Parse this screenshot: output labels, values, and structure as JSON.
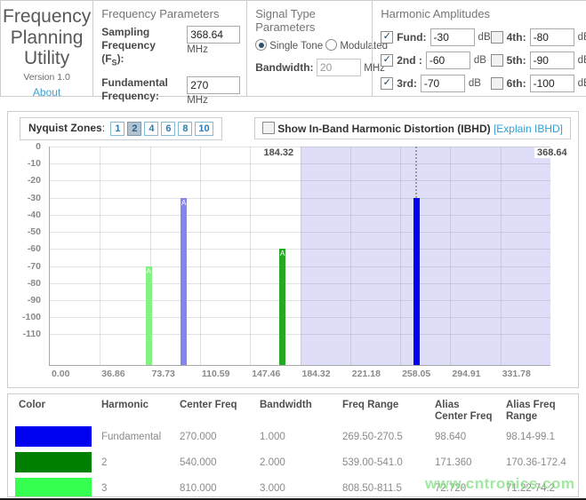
{
  "header": {
    "app_title": "Frequency Planning Utility",
    "version": "Version 1.0",
    "about_link": "About",
    "frequency_parameters": {
      "title": "Frequency Parameters",
      "sampling_label": "Sampling Frequency",
      "sampling_fs_prefix": "(F",
      "sampling_fs_sub": "S",
      "sampling_fs_suffix": "):",
      "sampling_value": "368.64",
      "sampling_unit": "MHz",
      "fundamental_label": "Fundamental Frequency:",
      "fundamental_value": "270",
      "fundamental_unit": "MHz"
    },
    "signal_type": {
      "title": "Signal Type Parameters",
      "options": [
        {
          "label": "Single Tone",
          "selected": true
        },
        {
          "label": "Modulated",
          "selected": false
        }
      ],
      "bandwidth_label": "Bandwidth:",
      "bandwidth_value": "20",
      "bandwidth_disabled": true,
      "bandwidth_unit": "MHz"
    },
    "harmonic_amplitudes": {
      "title": "Harmonic Amplitudes",
      "unit": "dB",
      "items": [
        {
          "label": "Fund:",
          "value": "-30",
          "checked": true
        },
        {
          "label": "2nd :",
          "value": "-60",
          "checked": true
        },
        {
          "label": "3rd:",
          "value": "-70",
          "checked": true
        },
        {
          "label": "4th:",
          "value": "-80",
          "checked": false
        },
        {
          "label": "5th:",
          "value": "-90",
          "checked": false
        },
        {
          "label": "6th:",
          "value": "-100",
          "checked": false
        }
      ]
    }
  },
  "controls": {
    "nyquist_label": "Nyquist Zones",
    "nyquist_separator": ":",
    "zones": [
      {
        "label": "1",
        "selected": false
      },
      {
        "label": "2",
        "selected": true
      },
      {
        "label": "4",
        "selected": false
      },
      {
        "label": "6",
        "selected": false
      },
      {
        "label": "8",
        "selected": false
      },
      {
        "label": "10",
        "selected": false
      }
    ],
    "ibhd_label": "Show In-Band Harmonic Distortion (IBHD)",
    "ibhd_link": "[Explain IBHD]",
    "ibhd_checked": false
  },
  "chart_data": {
    "type": "bar",
    "xlim": [
      0,
      368.64
    ],
    "x_ticks": [
      {
        "value": 0,
        "label": "0.00"
      },
      {
        "value": 36.864,
        "label": "36.86"
      },
      {
        "value": 73.728,
        "label": "73.73"
      },
      {
        "value": 110.592,
        "label": "110.59"
      },
      {
        "value": 147.456,
        "label": "147.46"
      },
      {
        "value": 184.32,
        "label": "184.32"
      },
      {
        "value": 221.184,
        "label": "221.18"
      },
      {
        "value": 258.048,
        "label": "258.05"
      },
      {
        "value": 294.912,
        "label": "294.91"
      },
      {
        "value": 331.776,
        "label": "331.78"
      }
    ],
    "y_ticks": [
      0,
      -10,
      -20,
      -30,
      -40,
      -50,
      -60,
      -70,
      -80,
      -90,
      -100,
      -110
    ],
    "ylabel_unit": "dB",
    "y_bottom": -128,
    "grid": true,
    "shaded_zone": {
      "start": 184.32,
      "end": 368.64,
      "start_label": "184.32",
      "end_label": "368.64",
      "color": "#dedef8"
    },
    "alias_marker": "A",
    "bars": [
      {
        "name": "harmonic-3-alias",
        "freq": 72.72,
        "amp_db": -70,
        "color": "#83f283",
        "alias": true
      },
      {
        "name": "fundamental-alias",
        "freq": 98.64,
        "amp_db": -30,
        "color": "#8585ef",
        "alias": true
      },
      {
        "name": "harmonic-2-alias",
        "freq": 171.36,
        "amp_db": -60,
        "color": "#25a825",
        "alias": true
      },
      {
        "name": "fundamental",
        "freq": 270.0,
        "amp_db": -30,
        "color": "#0000ee",
        "alias": false,
        "dotted_marker": true
      }
    ]
  },
  "table": {
    "headers": [
      "Color",
      "Harmonic",
      "Center Freq",
      "Bandwidth",
      "Freq Range",
      "Alias Center Freq",
      "Alias Freq Range"
    ],
    "rows": [
      {
        "color": "#0000f0",
        "harmonic": "Fundamental",
        "center_freq": "270.000",
        "bandwidth": "1.000",
        "freq_range": "269.50-270.5",
        "alias_center": "98.640",
        "alias_range": "98.14-99.1"
      },
      {
        "color": "#008000",
        "harmonic": "2",
        "center_freq": "540.000",
        "bandwidth": "2.000",
        "freq_range": "539.00-541.0",
        "alias_center": "171.360",
        "alias_range": "170.36-172.4"
      },
      {
        "color": "#35ff4f",
        "harmonic": "3",
        "center_freq": "810.000",
        "bandwidth": "3.000",
        "freq_range": "808.50-811.5",
        "alias_center": "72.720",
        "alias_range": "71.22-74.2"
      }
    ]
  },
  "watermark": "www.cntronics.com",
  "icons": {
    "check": "✓"
  },
  "colors": {
    "link_blue": "#3fa0d6",
    "zone_button_text": "#2e7cb0",
    "zone_selected_bg": "#b2c3cf",
    "shade_lavender": "#dedef8",
    "panel_border": "#cccccc"
  }
}
